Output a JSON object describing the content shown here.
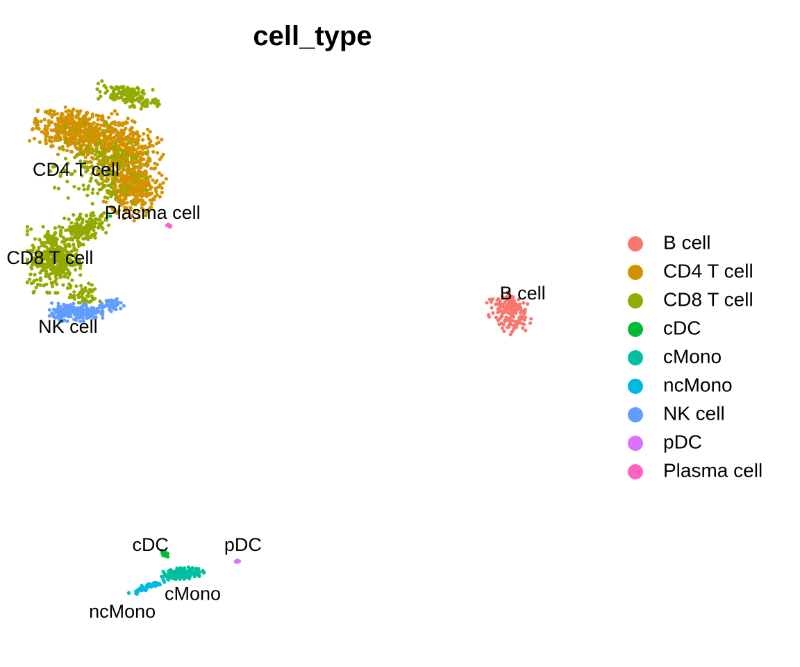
{
  "chart_data": {
    "type": "scatter",
    "title": "cell_type",
    "xlabel": "",
    "ylabel": "",
    "xlim": [
      -12,
      17
    ],
    "ylim": [
      -20,
      9
    ],
    "grid": false,
    "axes_visible": false,
    "legend_position": "right",
    "series": [
      {
        "name": "B cell",
        "color": "#F8766D",
        "clusters": [
          {
            "center": [
              12.0,
              -3.0
            ],
            "spread": [
              0.7,
              0.9
            ],
            "angle": 45,
            "n": 160
          }
        ],
        "label": {
          "text": "B cell",
          "x": 12.6,
          "y": -2.1
        }
      },
      {
        "name": "CD4 T cell",
        "color": "#D39200",
        "clusters": [
          {
            "center": [
              -9.6,
              6.2
            ],
            "spread": [
              1.6,
              0.8
            ],
            "angle": -15,
            "n": 520
          },
          {
            "center": [
              -7.3,
              5.2
            ],
            "spread": [
              1.4,
              1.2
            ],
            "angle": -30,
            "n": 460
          },
          {
            "center": [
              -6.8,
              3.3
            ],
            "spread": [
              1.0,
              1.1
            ],
            "angle": -40,
            "n": 320
          }
        ],
        "label": {
          "text": "CD4 T cell",
          "x": -9.6,
          "y": 4.2
        }
      },
      {
        "name": "CD8 T cell",
        "color": "#93AA00",
        "clusters": [
          {
            "center": [
              -10.7,
              -0.3
            ],
            "spread": [
              1.0,
              1.3
            ],
            "angle": 0,
            "n": 380
          },
          {
            "center": [
              -9.2,
              1.3
            ],
            "spread": [
              0.9,
              0.6
            ],
            "angle": 20,
            "n": 140
          },
          {
            "center": [
              -7.0,
              8.0
            ],
            "spread": [
              1.2,
              0.4
            ],
            "angle": -10,
            "n": 140
          },
          {
            "center": [
              -8.5,
              4.3
            ],
            "spread": [
              1.8,
              1.8
            ],
            "angle": 0,
            "n": 180
          },
          {
            "center": [
              -9.2,
              -2.2
            ],
            "spread": [
              0.6,
              0.5
            ],
            "angle": 0,
            "n": 50
          }
        ],
        "label": {
          "text": "CD8 T cell",
          "x": -10.9,
          "y": -0.3
        }
      },
      {
        "name": "cDC",
        "color": "#00BA38",
        "clusters": [
          {
            "center": [
              -5.2,
              -15.3
            ],
            "spread": [
              0.12,
              0.15
            ],
            "angle": 0,
            "n": 18
          },
          {
            "center": [
              -7.9,
              1.9
            ],
            "spread": [
              0.02,
              0.02
            ],
            "angle": 0,
            "n": 1
          }
        ],
        "label": {
          "text": "cDC",
          "x": -5.9,
          "y": -14.9
        }
      },
      {
        "name": "cMono",
        "color": "#00C19F",
        "clusters": [
          {
            "center": [
              -4.3,
              -16.3
            ],
            "spread": [
              0.8,
              0.22
            ],
            "angle": 5,
            "n": 180
          }
        ],
        "label": {
          "text": "cMono",
          "x": -3.8,
          "y": -17.4
        }
      },
      {
        "name": "ncMono",
        "color": "#00B9E3",
        "clusters": [
          {
            "center": [
              -6.1,
              -17.0
            ],
            "spread": [
              0.7,
              0.12
            ],
            "angle": 22,
            "n": 50
          }
        ],
        "label": {
          "text": "ncMono",
          "x": -7.3,
          "y": -18.3
        }
      },
      {
        "name": "NK cell",
        "color": "#619CFF",
        "clusters": [
          {
            "center": [
              -9.6,
              -3.0
            ],
            "spread": [
              1.0,
              0.35
            ],
            "angle": 0,
            "n": 200
          },
          {
            "center": [
              -7.8,
              -2.7
            ],
            "spread": [
              0.6,
              0.25
            ],
            "angle": 10,
            "n": 50
          }
        ],
        "label": {
          "text": "NK cell",
          "x": -10.0,
          "y": -3.8
        }
      },
      {
        "name": "pDC",
        "color": "#DB72FB",
        "clusters": [
          {
            "center": [
              -1.6,
              -15.7
            ],
            "spread": [
              0.12,
              0.06
            ],
            "angle": 30,
            "n": 12
          }
        ],
        "label": {
          "text": "pDC",
          "x": -1.3,
          "y": -14.9
        }
      },
      {
        "name": "Plasma cell",
        "color": "#FF61C3",
        "clusters": [
          {
            "center": [
              -5.0,
              1.4
            ],
            "spread": [
              0.12,
              0.05
            ],
            "angle": -15,
            "n": 10
          }
        ],
        "label": {
          "text": "Plasma cell",
          "x": -5.8,
          "y": 2.0
        }
      }
    ]
  }
}
